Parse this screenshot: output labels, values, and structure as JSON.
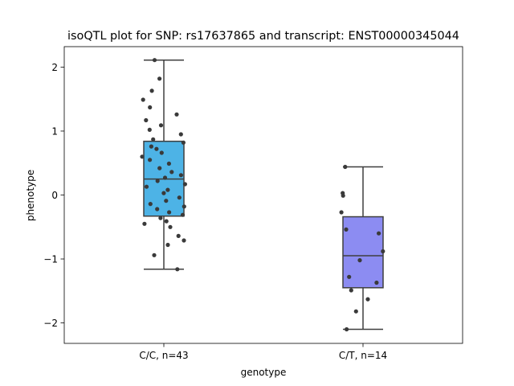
{
  "chart_data": {
    "type": "box",
    "title": "isoQTL plot for SNP: rs17637865 and transcript: ENST00000345044",
    "xlabel": "genotype",
    "ylabel": "phenotype",
    "ylim": [
      -2.32,
      2.32
    ],
    "yticks": [
      2,
      1,
      0,
      -1,
      -2
    ],
    "ytick_labels": [
      "2",
      "1",
      "0",
      "−1",
      "−2"
    ],
    "grid": false,
    "categories": [
      "C/C, n=43",
      "C/T, n=14"
    ],
    "boxes": [
      {
        "category": "C/C, n=43",
        "color": "#4db3e6",
        "whisker_low": -1.16,
        "q1": -0.33,
        "median": 0.25,
        "q3": 0.84,
        "whisker_high": 2.11,
        "points": [
          2.11,
          1.82,
          1.63,
          1.49,
          1.37,
          1.26,
          1.17,
          1.09,
          1.02,
          0.95,
          0.87,
          0.82,
          0.76,
          0.72,
          0.66,
          0.6,
          0.55,
          0.49,
          0.42,
          0.36,
          0.31,
          0.27,
          0.22,
          0.17,
          0.13,
          0.08,
          0.03,
          -0.04,
          -0.09,
          -0.14,
          -0.18,
          -0.22,
          -0.27,
          -0.31,
          -0.36,
          -0.41,
          -0.45,
          -0.5,
          -0.64,
          -0.71,
          -0.78,
          -0.94,
          -1.16
        ]
      },
      {
        "category": "C/T, n=14",
        "color": "#8c8cf2",
        "whisker_low": -2.1,
        "q1": -1.45,
        "median": -0.95,
        "q3": -0.34,
        "whisker_high": 0.44,
        "points": [
          0.44,
          0.03,
          -0.01,
          -0.27,
          -0.54,
          -0.6,
          -0.88,
          -1.02,
          -1.28,
          -1.37,
          -1.49,
          -1.63,
          -1.82,
          -2.1
        ]
      }
    ]
  }
}
